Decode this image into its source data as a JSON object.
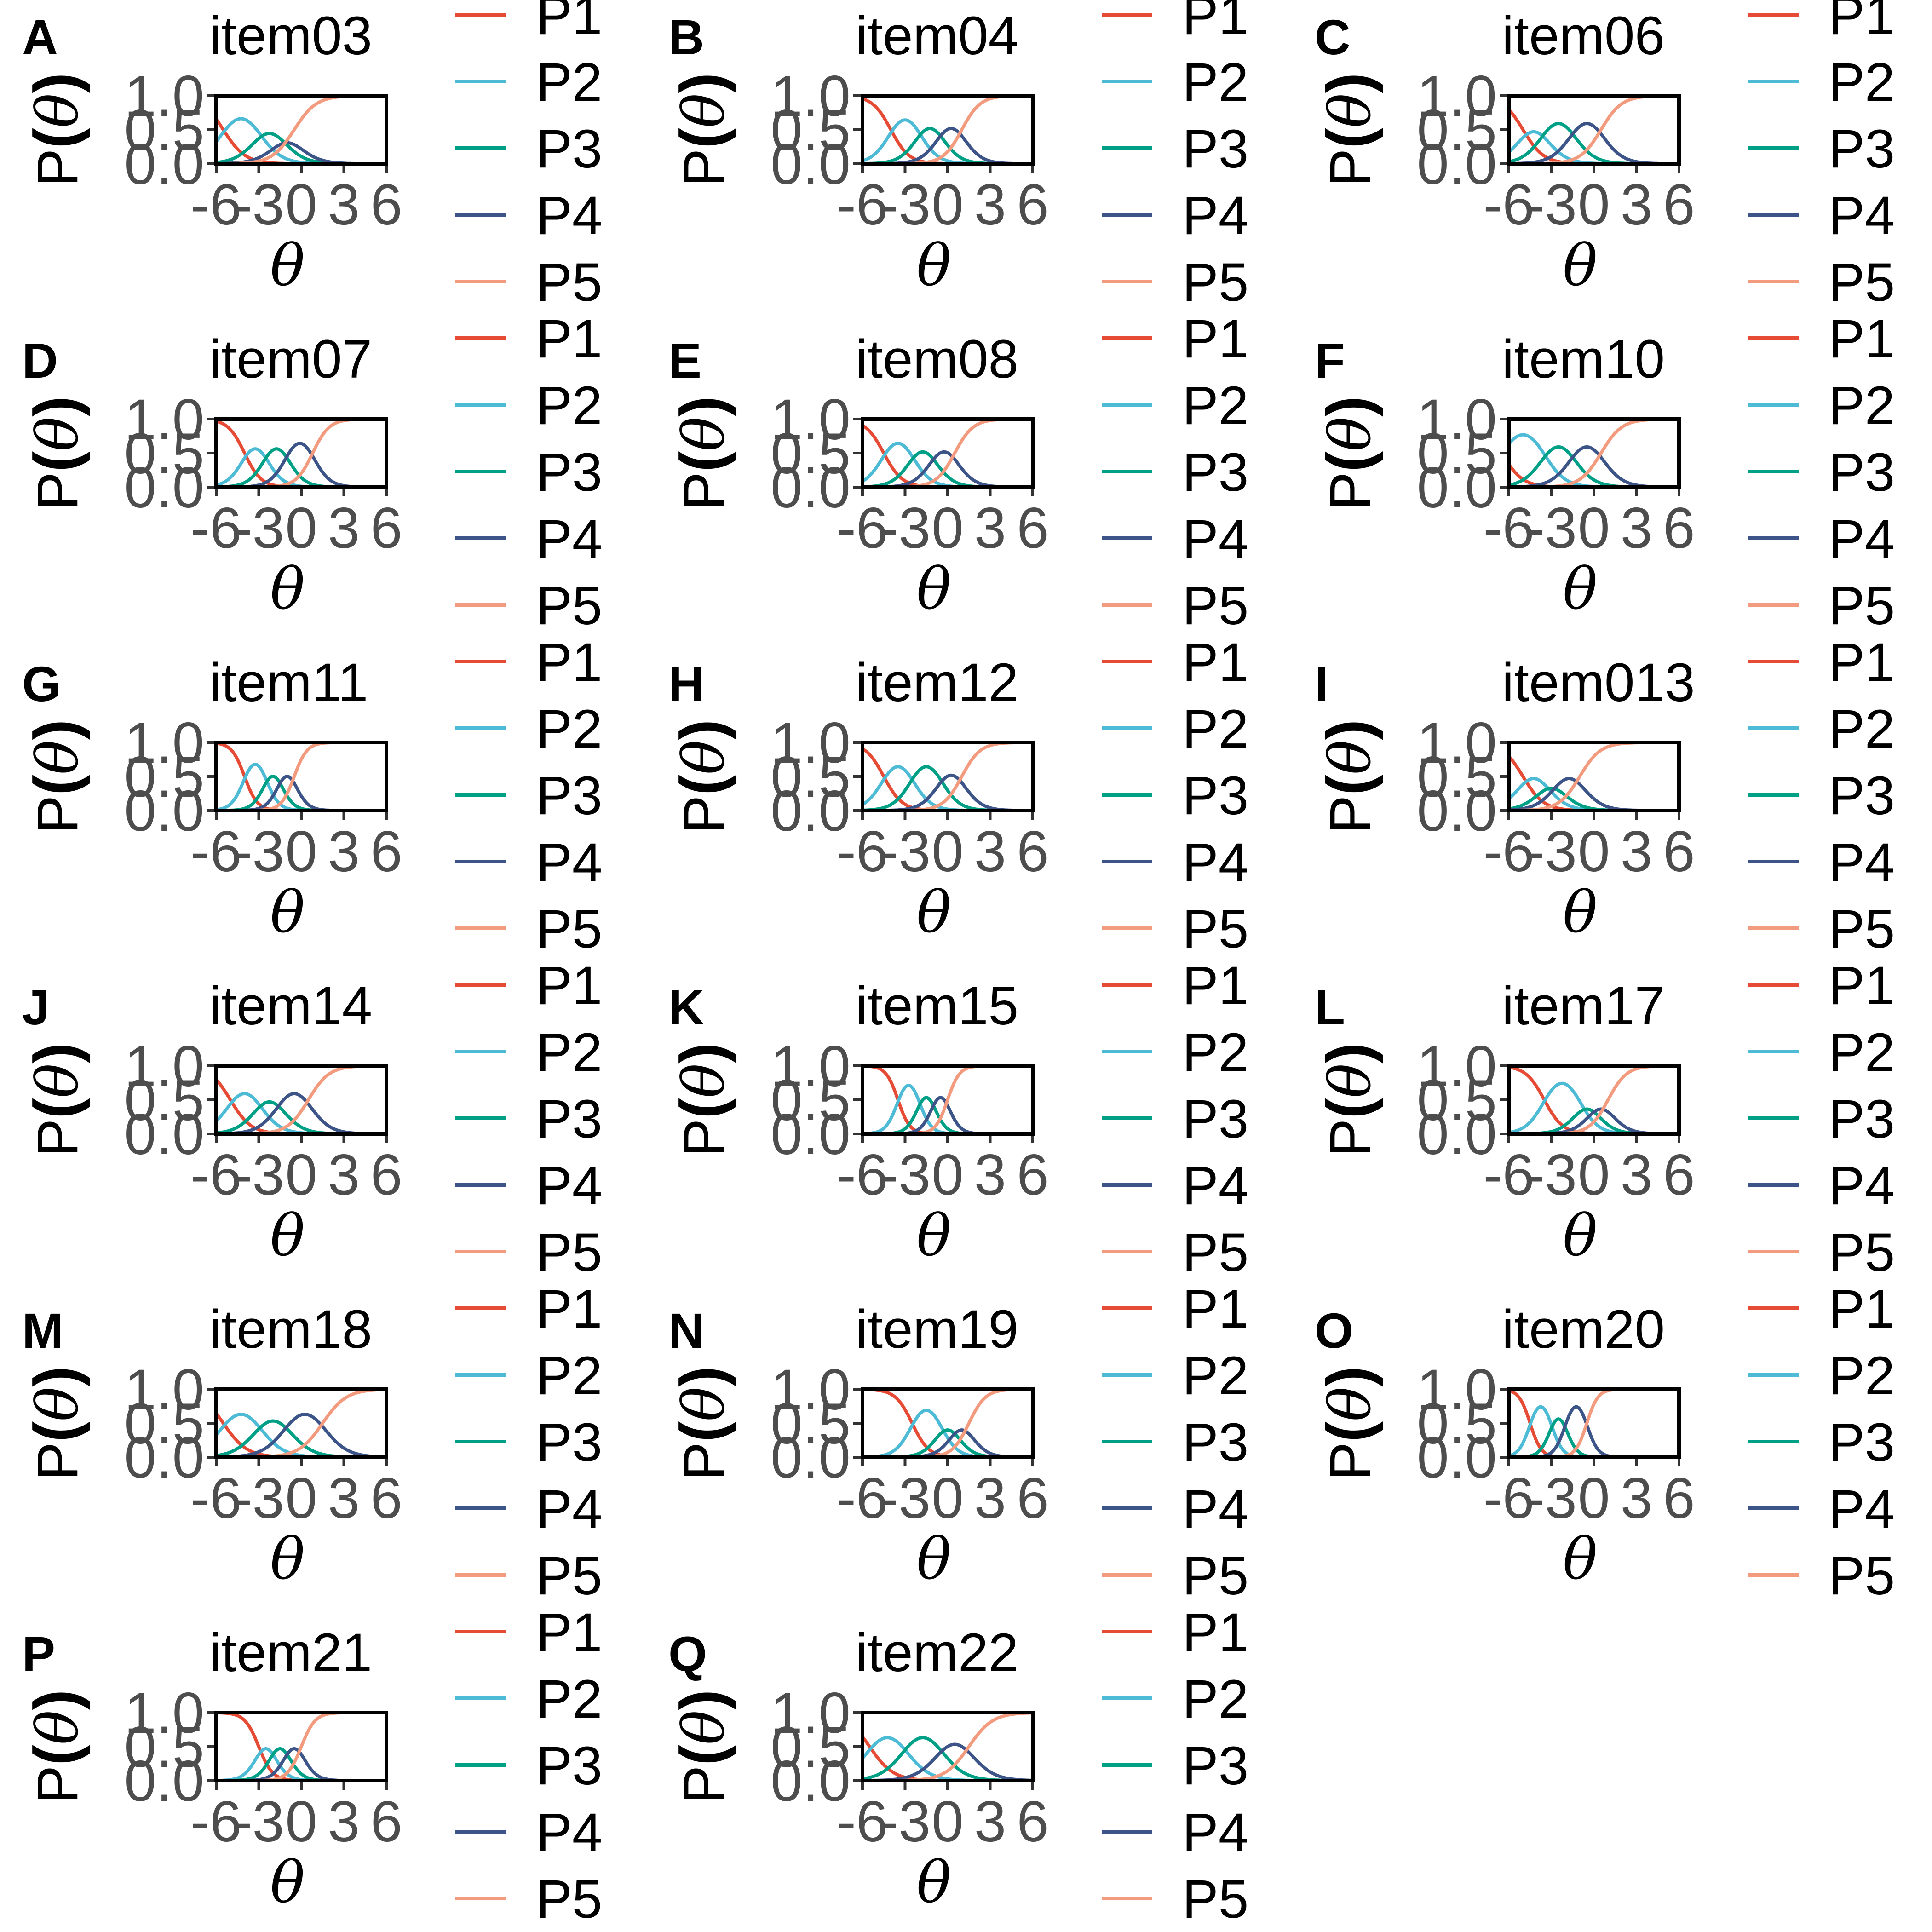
{
  "figure": {
    "y_axis_label": "P(θ)",
    "x_axis_label": "θ",
    "legend_labels": [
      "P1",
      "P2",
      "P3",
      "P4",
      "P5"
    ],
    "colors": {
      "P1": "#E64B35",
      "P2": "#4DBBD5",
      "P3": "#00A087",
      "P4": "#3C5488",
      "P5": "#F39B7F"
    }
  },
  "chart_data": [
    {
      "type": "line",
      "panel": "A",
      "title": "item03",
      "xlabel": "θ",
      "ylabel": "P(θ)",
      "xlim": [
        -6,
        6
      ],
      "ylim": [
        0,
        1
      ],
      "x_ticks": [
        -6,
        -3,
        0,
        3,
        6
      ],
      "y_ticks": [
        0.0,
        0.5,
        1.0
      ],
      "legend": "right",
      "a": 0.75,
      "b": [
        -5.5,
        -3.0,
        -1.5,
        -0.5
      ]
    },
    {
      "type": "line",
      "panel": "B",
      "title": "item04",
      "xlabel": "θ",
      "ylabel": "P(θ)",
      "xlim": [
        -6,
        6
      ],
      "ylim": [
        0,
        1
      ],
      "x_ticks": [
        -6,
        -3,
        0,
        3,
        6
      ],
      "y_ticks": [
        0.0,
        0.5,
        1.0
      ],
      "legend": "right",
      "a": 0.9,
      "b": [
        -4.0,
        -2.0,
        -0.5,
        1.0
      ]
    },
    {
      "type": "line",
      "panel": "C",
      "title": "item06",
      "xlabel": "θ",
      "ylabel": "P(θ)",
      "xlim": [
        -6,
        6
      ],
      "ylim": [
        0,
        1
      ],
      "x_ticks": [
        -6,
        -3,
        0,
        3,
        6
      ],
      "y_ticks": [
        0.0,
        0.5,
        1.0
      ],
      "legend": "right",
      "a": 0.8,
      "b": [
        -5.0,
        -3.5,
        -1.5,
        0.5
      ]
    },
    {
      "type": "line",
      "panel": "D",
      "title": "item07",
      "xlabel": "θ",
      "ylabel": "P(θ)",
      "xlim": [
        -6,
        6
      ],
      "ylim": [
        0,
        1
      ],
      "x_ticks": [
        -6,
        -3,
        0,
        3,
        6
      ],
      "y_ticks": [
        0.0,
        0.5,
        1.0
      ],
      "legend": "right",
      "a": 1.0,
      "b": [
        -4.0,
        -2.5,
        -1.0,
        0.8
      ]
    },
    {
      "type": "line",
      "panel": "E",
      "title": "item08",
      "xlabel": "θ",
      "ylabel": "P(θ)",
      "xlim": [
        -6,
        6
      ],
      "ylim": [
        0,
        1
      ],
      "x_ticks": [
        -6,
        -3,
        0,
        3,
        6
      ],
      "y_ticks": [
        0.0,
        0.5,
        1.0
      ],
      "legend": "right",
      "a": 0.9,
      "b": [
        -4.5,
        -2.5,
        -1.0,
        0.5
      ]
    },
    {
      "type": "line",
      "panel": "F",
      "title": "item10",
      "xlabel": "θ",
      "ylabel": "P(θ)",
      "xlim": [
        -6,
        6
      ],
      "ylim": [
        0,
        1
      ],
      "x_ticks": [
        -6,
        -3,
        0,
        3,
        6
      ],
      "y_ticks": [
        0.0,
        0.5,
        1.0
      ],
      "legend": "right",
      "a": 0.8,
      "b": [
        -6.5,
        -3.5,
        -1.5,
        0.5
      ]
    },
    {
      "type": "line",
      "panel": "G",
      "title": "item11",
      "xlabel": "θ",
      "ylabel": "P(θ)",
      "xlim": [
        -6,
        6
      ],
      "ylim": [
        0,
        1
      ],
      "x_ticks": [
        -6,
        -3,
        0,
        3,
        6
      ],
      "y_ticks": [
        0.0,
        0.5,
        1.0
      ],
      "legend": "right",
      "a": 1.3,
      "b": [
        -4.0,
        -2.5,
        -1.5,
        -0.5
      ]
    },
    {
      "type": "line",
      "panel": "H",
      "title": "item12",
      "xlabel": "θ",
      "ylabel": "P(θ)",
      "xlim": [
        -6,
        6
      ],
      "ylim": [
        0,
        1
      ],
      "x_ticks": [
        -6,
        -3,
        0,
        3,
        6
      ],
      "y_ticks": [
        0.0,
        0.5,
        1.0
      ],
      "legend": "right",
      "a": 0.9,
      "b": [
        -4.5,
        -2.5,
        -0.5,
        1.0
      ]
    },
    {
      "type": "line",
      "panel": "I",
      "title": "item013",
      "xlabel": "θ",
      "ylabel": "P(θ)",
      "xlim": [
        -6,
        6
      ],
      "ylim": [
        0,
        1
      ],
      "x_ticks": [
        -6,
        -3,
        0,
        3,
        6
      ],
      "y_ticks": [
        0.0,
        0.5,
        1.0
      ],
      "legend": "right",
      "a": 0.8,
      "b": [
        -5.0,
        -3.5,
        -2.5,
        -1.0
      ]
    },
    {
      "type": "line",
      "panel": "J",
      "title": "item14",
      "xlabel": "θ",
      "ylabel": "P(θ)",
      "xlim": [
        -6,
        6
      ],
      "ylim": [
        0,
        1
      ],
      "x_ticks": [
        -6,
        -3,
        0,
        3,
        6
      ],
      "y_ticks": [
        0.0,
        0.5,
        1.0
      ],
      "legend": "right",
      "a": 0.8,
      "b": [
        -5.0,
        -3.0,
        -1.5,
        0.5
      ]
    },
    {
      "type": "line",
      "panel": "K",
      "title": "item15",
      "xlabel": "θ",
      "ylabel": "P(θ)",
      "xlim": [
        -6,
        6
      ],
      "ylim": [
        0,
        1
      ],
      "x_ticks": [
        -6,
        -3,
        0,
        3,
        6
      ],
      "y_ticks": [
        0.0,
        0.5,
        1.0
      ],
      "legend": "right",
      "a": 1.4,
      "b": [
        -3.5,
        -2.0,
        -1.0,
        0.0
      ]
    },
    {
      "type": "line",
      "panel": "L",
      "title": "item17",
      "xlabel": "θ",
      "ylabel": "P(θ)",
      "xlim": [
        -6,
        6
      ],
      "ylim": [
        0,
        1
      ],
      "x_ticks": [
        -6,
        -3,
        0,
        3,
        6
      ],
      "y_ticks": [
        0.0,
        0.5,
        1.0
      ],
      "legend": "right",
      "a": 0.9,
      "b": [
        -3.5,
        -1.0,
        0.0,
        1.0
      ]
    },
    {
      "type": "line",
      "panel": "M",
      "title": "item18",
      "xlabel": "θ",
      "ylabel": "P(θ)",
      "xlim": [
        -6,
        6
      ],
      "ylim": [
        0,
        1
      ],
      "x_ticks": [
        -6,
        -3,
        0,
        3,
        6
      ],
      "y_ticks": [
        0.0,
        0.5,
        1.0
      ],
      "legend": "right",
      "a": 0.7,
      "b": [
        -5.5,
        -3.0,
        -1.0,
        1.5
      ]
    },
    {
      "type": "line",
      "panel": "N",
      "title": "item19",
      "xlabel": "θ",
      "ylabel": "P(θ)",
      "xlim": [
        -6,
        6
      ],
      "ylim": [
        0,
        1
      ],
      "x_ticks": [
        -6,
        -3,
        0,
        3,
        6
      ],
      "y_ticks": [
        0.0,
        0.5,
        1.0
      ],
      "legend": "right",
      "a": 1.0,
      "b": [
        -2.5,
        -0.5,
        0.5,
        1.5
      ]
    },
    {
      "type": "line",
      "panel": "O",
      "title": "item20",
      "xlabel": "θ",
      "ylabel": "P(θ)",
      "xlim": [
        -6,
        6
      ],
      "ylim": [
        0,
        1
      ],
      "x_ticks": [
        -6,
        -3,
        0,
        3,
        6
      ],
      "y_ticks": [
        0.0,
        0.5,
        1.0
      ],
      "legend": "right",
      "a": 1.5,
      "b": [
        -4.5,
        -3.0,
        -2.0,
        -0.5
      ]
    },
    {
      "type": "line",
      "panel": "P",
      "title": "item21",
      "xlabel": "θ",
      "ylabel": "P(θ)",
      "xlim": [
        -6,
        6
      ],
      "ylim": [
        0,
        1
      ],
      "x_ticks": [
        -6,
        -3,
        0,
        3,
        6
      ],
      "y_ticks": [
        0.0,
        0.5,
        1.0
      ],
      "legend": "right",
      "a": 1.2,
      "b": [
        -3.0,
        -2.0,
        -1.0,
        0.0
      ]
    },
    {
      "type": "line",
      "panel": "Q",
      "title": "item22",
      "xlabel": "θ",
      "ylabel": "P(θ)",
      "xlim": [
        -6,
        6
      ],
      "ylim": [
        0,
        1
      ],
      "x_ticks": [
        -6,
        -3,
        0,
        3,
        6
      ],
      "y_ticks": [
        0.0,
        0.5,
        1.0
      ],
      "legend": "right",
      "a": 0.7,
      "b": [
        -5.5,
        -3.0,
        -0.5,
        1.5
      ]
    }
  ]
}
